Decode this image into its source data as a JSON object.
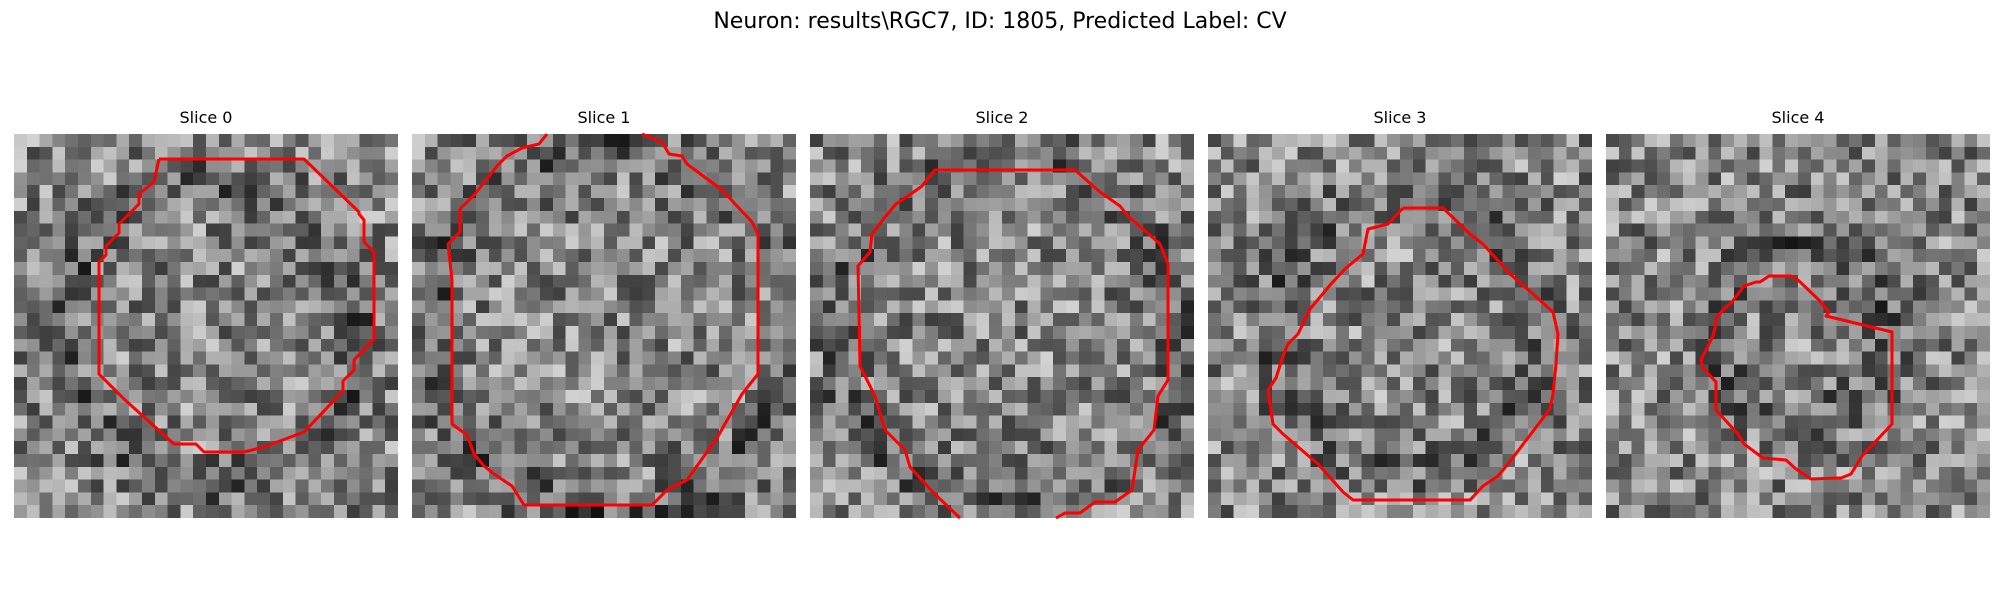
{
  "figure": {
    "title": "Neuron: results\\RGC7, ID: 1805, Predicted Label: CV"
  },
  "colors": {
    "contour": "#ff0000"
  },
  "panels": [
    {
      "title": "Slice 0"
    },
    {
      "title": "Slice 1"
    },
    {
      "title": "Slice 2"
    },
    {
      "title": "Slice 3"
    },
    {
      "title": "Slice 4"
    }
  ]
}
